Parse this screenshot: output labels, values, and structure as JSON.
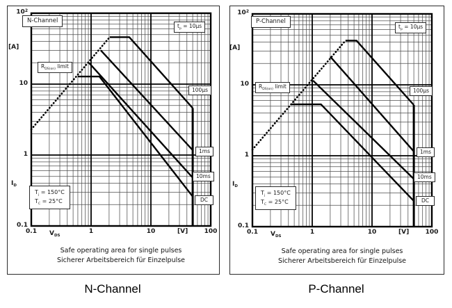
{
  "axes": {
    "y_top_tick": {
      "base": "10",
      "sup": "2"
    },
    "y_ticks": [
      "10",
      "1",
      "0.1"
    ],
    "x_ticks": [
      "0.1",
      "1",
      "10",
      "100"
    ],
    "y_unit": "[A]",
    "x_unit": "[V]",
    "y_symbol": {
      "base": "I",
      "sub": "D"
    },
    "x_symbol": {
      "base": "V",
      "sub": "DS"
    }
  },
  "figures": {
    "n": {
      "channel_label": "N-Channel",
      "pulse_label": {
        "base": "t",
        "sub": "p",
        "rest": " = 10µs"
      },
      "rds_label": {
        "base": "R",
        "sub": "DS(on)",
        "rest": " limit"
      },
      "curve_labels": {
        "us100": "100µs",
        "ms1": "1ms",
        "ms10": "10ms",
        "dc": "DC"
      },
      "conditions": {
        "line1": {
          "base": "T",
          "sub": "j",
          "rest": " = 150°C"
        },
        "line2": {
          "base": "T",
          "sub": "C",
          "rest": " = 25°C"
        }
      },
      "caption_line1": "Safe operating area for single pulses",
      "caption_line2": "Sicherer Arbeitsbereich für Einzelpulse",
      "title": "N-Channel"
    },
    "p": {
      "channel_label": "P-Channel",
      "pulse_label": {
        "base": "t",
        "sub": "p",
        "rest": " = 10µs"
      },
      "rds_label": {
        "base": "R",
        "sub": "DS(on)",
        "rest": " limit"
      },
      "curve_labels": {
        "us100": "100µs",
        "ms1": "1ms",
        "ms10": "10ms",
        "dc": "DC"
      },
      "conditions": {
        "line1": {
          "base": "T",
          "sub": "j",
          "rest": " = 150°C"
        },
        "line2": {
          "base": "T",
          "sub": "C",
          "rest": " = 25°C"
        }
      },
      "caption_line1": "Safe operating area for single pulses",
      "caption_line2": "Sicherer Arbeitsbereich für Einzelpulse",
      "title": "P-Channel"
    }
  },
  "chart_data": [
    {
      "type": "line",
      "title": "N-Channel",
      "xlabel": "V_DS [V]",
      "ylabel": "I_D [A]",
      "x_scale": "log",
      "y_scale": "log",
      "xlim": [
        0.1,
        100
      ],
      "ylim": [
        0.1,
        100
      ],
      "grid": true,
      "legend_position": "right-edge-boxes",
      "conditions": [
        "Tj = 150°C",
        "TC = 25°C"
      ],
      "series": [
        {
          "name": "RDS(on) limit",
          "style": "dotted",
          "points": [
            [
              0.1,
              2.3
            ],
            [
              2.05,
              46
            ]
          ]
        },
        {
          "name": "tp = 10µs",
          "style": "solid",
          "points": [
            [
              2.05,
              46
            ],
            [
              4.35,
              46
            ],
            [
              50,
              4.6
            ]
          ]
        },
        {
          "name": "100µs",
          "style": "solid",
          "points": [
            [
              1.45,
              30
            ],
            [
              50,
              1.17
            ]
          ]
        },
        {
          "name": "1ms",
          "style": "solid",
          "points": [
            [
              0.92,
              20
            ],
            [
              50,
              0.48
            ]
          ]
        },
        {
          "name": "10ms / DC",
          "style": "solid",
          "points": [
            [
              0.6,
              12.8
            ],
            [
              1.38,
              12.8
            ],
            [
              50,
              0.26
            ]
          ]
        },
        {
          "name": "VDS max boundary",
          "style": "solid",
          "width": 3,
          "points": [
            [
              50,
              4.6
            ],
            [
              50,
              0.1
            ]
          ]
        }
      ]
    },
    {
      "type": "line",
      "title": "P-Channel",
      "xlabel": "V_DS [V]",
      "ylabel": "I_D [A]",
      "x_scale": "log",
      "y_scale": "log",
      "xlim": [
        0.1,
        100
      ],
      "ylim": [
        0.1,
        100
      ],
      "grid": true,
      "legend_position": "right-edge-boxes",
      "conditions": [
        "Tj = 150°C",
        "TC = 25°C"
      ],
      "series": [
        {
          "name": "RDS(on) limit",
          "style": "dotted",
          "points": [
            [
              0.1,
              1.22
            ],
            [
              3.6,
              42
            ]
          ]
        },
        {
          "name": "tp = 10µs",
          "style": "solid",
          "points": [
            [
              3.6,
              42
            ],
            [
              5.5,
              42
            ],
            [
              50,
              5.2
            ]
          ]
        },
        {
          "name": "100µs",
          "style": "solid",
          "points": [
            [
              2.0,
              25
            ],
            [
              50,
              1.15
            ]
          ]
        },
        {
          "name": "1ms",
          "style": "solid",
          "points": [
            [
              1.03,
              11.5
            ],
            [
              50,
              0.47
            ]
          ]
        },
        {
          "name": "10ms / DC",
          "style": "solid",
          "points": [
            [
              0.44,
              5.3
            ],
            [
              1.4,
              5.3
            ],
            [
              50,
              0.23
            ]
          ]
        },
        {
          "name": "VDS max boundary",
          "style": "solid",
          "width": 3,
          "points": [
            [
              50,
              5.2
            ],
            [
              50,
              0.1
            ]
          ]
        }
      ]
    }
  ]
}
